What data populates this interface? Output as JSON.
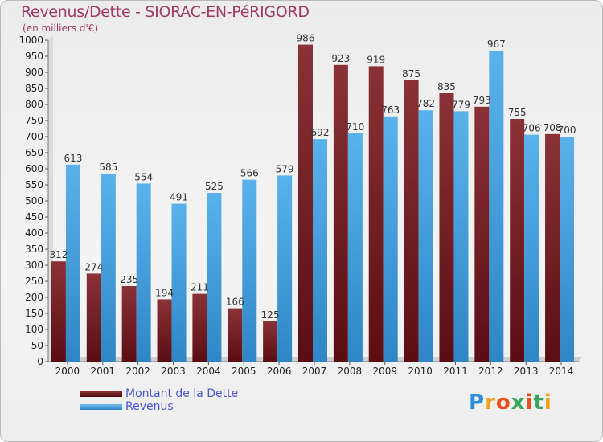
{
  "title": "Revenus/Dette - SIORAC-EN-PéRIGORD",
  "subtitle": "(en milliers d'€)",
  "brand": {
    "letters": [
      "P",
      "r",
      "o",
      "x",
      "i",
      "t",
      "i"
    ]
  },
  "colors": {
    "dette": "#7a1f24",
    "revenus": "#4aa3e0",
    "title": "#a13a63",
    "legend_text": "#4a56d8"
  },
  "chart_data": {
    "type": "bar",
    "title": "Revenus/Dette - SIORAC-EN-PéRIGORD",
    "subtitle": "(en milliers d'€)",
    "xlabel": "",
    "ylabel": "",
    "ylim": [
      0,
      1000
    ],
    "yticks": [
      0,
      50,
      100,
      150,
      200,
      250,
      300,
      350,
      400,
      450,
      500,
      550,
      600,
      650,
      700,
      750,
      800,
      850,
      900,
      950,
      1000
    ],
    "grid": false,
    "legend_position": "bottom-left",
    "categories": [
      "2000",
      "2001",
      "2002",
      "2003",
      "2004",
      "2005",
      "2006",
      "2007",
      "2008",
      "2009",
      "2010",
      "2011",
      "2012",
      "2013",
      "2014"
    ],
    "series": [
      {
        "name": "Montant de la Dette",
        "values": [
          312,
          274,
          235,
          194,
          211,
          166,
          125,
          986,
          923,
          919,
          875,
          835,
          793,
          755,
          708
        ]
      },
      {
        "name": "Revenus",
        "values": [
          613,
          585,
          554,
          491,
          525,
          566,
          579,
          692,
          710,
          763,
          782,
          779,
          967,
          706,
          700
        ]
      }
    ]
  }
}
